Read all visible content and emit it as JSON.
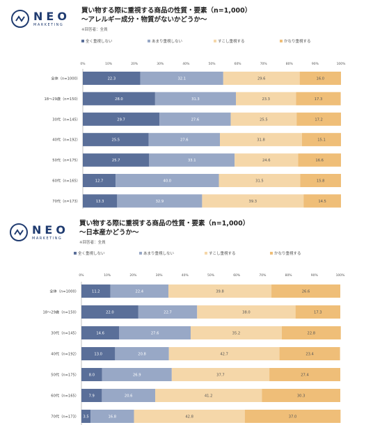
{
  "brand": {
    "name": "NEO",
    "tagline": "MARKETING"
  },
  "colors": [
    "#5a6f99",
    "#98a8c6",
    "#f5d7a9",
    "#efbe78"
  ],
  "legend": [
    "全く重視しない",
    "あまり重視しない",
    "すこし重視する",
    "かなり重視する"
  ],
  "ticks": [
    "0%",
    "10%",
    "20%",
    "30%",
    "40%",
    "50%",
    "60%",
    "70%",
    "80%",
    "90%",
    "100%"
  ],
  "chart_data": [
    {
      "type": "bar",
      "orientation": "horizontal-stacked-100",
      "title": "買い物する際に重視する商品の性質・要素（n=1,000）",
      "subtitle": "〜アレルギー成分・物質がないかどうか〜",
      "respondent": "※回答者：全員",
      "xlim": [
        0,
        100
      ],
      "categories": [
        "全体（n=1000）",
        "18〜29歳（n=150）",
        "30代（n=145）",
        "40代（n=192）",
        "50代（n=175）",
        "60代（n=165）",
        "70代（n=173）"
      ],
      "series": [
        {
          "name": "全く重視しない",
          "values": [
            22.3,
            28.0,
            29.7,
            25.5,
            25.7,
            12.7,
            13.3
          ]
        },
        {
          "name": "あまり重視しない",
          "values": [
            32.1,
            31.3,
            27.6,
            27.6,
            33.1,
            40.0,
            32.9
          ]
        },
        {
          "name": "すこし重視する",
          "values": [
            29.6,
            23.3,
            25.5,
            31.8,
            24.6,
            31.5,
            39.3
          ]
        },
        {
          "name": "かなり重視する",
          "values": [
            16.0,
            17.3,
            17.2,
            15.1,
            16.6,
            15.8,
            14.5
          ]
        }
      ]
    },
    {
      "type": "bar",
      "orientation": "horizontal-stacked-100",
      "title": "買い物する際に重視する商品の性質・要素（n=1,000）",
      "subtitle": "〜日本産かどうか〜",
      "respondent": "※回答者：全員",
      "xlim": [
        0,
        100
      ],
      "categories": [
        "全体（n=1000）",
        "18〜29歳（n=150）",
        "30代（n=145）",
        "40代（n=192）",
        "50代（n=175）",
        "60代（n=165）",
        "70代（n=173）"
      ],
      "series": [
        {
          "name": "全く重視しない",
          "values": [
            11.2,
            22.0,
            14.6,
            13.0,
            8.0,
            7.9,
            3.5
          ]
        },
        {
          "name": "あまり重視しない",
          "values": [
            22.4,
            22.7,
            27.6,
            20.8,
            26.9,
            20.6,
            16.8
          ]
        },
        {
          "name": "すこし重視する",
          "values": [
            39.8,
            38.0,
            35.2,
            42.7,
            37.7,
            41.2,
            42.8
          ]
        },
        {
          "name": "かなり重視する",
          "values": [
            26.6,
            17.3,
            22.8,
            23.4,
            27.4,
            30.3,
            37.0
          ]
        }
      ]
    }
  ]
}
